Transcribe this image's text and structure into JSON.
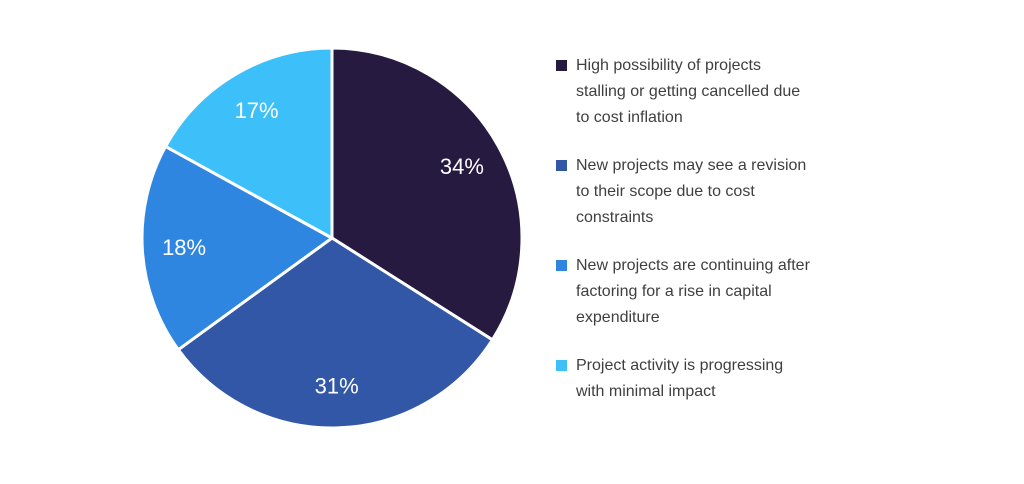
{
  "chart_data": {
    "type": "pie",
    "title": "",
    "categories": [
      "High possibility of projects stalling or getting cancelled due to cost inflation",
      "New projects may see a revision to their scope due to cost constraints",
      "New projects are continuing after factoring for a rise in capital expenditure",
      "Project activity is progressing with minimal impact"
    ],
    "values": [
      34,
      31,
      18,
      17
    ],
    "slice_labels": [
      "34%",
      "31%",
      "18%",
      "17%"
    ],
    "colors": [
      "#261A41",
      "#3157A6",
      "#2F86E0",
      "#3DC0FA"
    ],
    "start_angle_deg": 0,
    "direction": "clockwise",
    "legend_position": "right",
    "slice_border_color": "#FFFFFF",
    "slice_label_color": "#FFFFFF",
    "legend_text_color": "#3F3F3F",
    "legend": [
      {
        "label": "High possibility of projects\nstalling or getting cancelled due\nto cost inflation",
        "color": "#261A41"
      },
      {
        "label": "New projects may see a revision\nto their scope due to cost\nconstraints",
        "color": "#3157A6"
      },
      {
        "label": "New projects are continuing after\nfactoring for a rise in capital\nexpenditure",
        "color": "#2F86E0"
      },
      {
        "label": "Project activity is progressing\nwith minimal impact",
        "color": "#3DC0FA"
      }
    ]
  }
}
